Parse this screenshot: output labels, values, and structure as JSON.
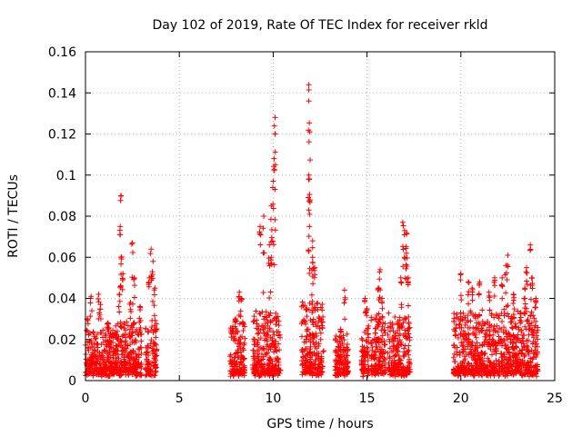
{
  "chart_data": {
    "type": "scatter",
    "title": "Day 102 of 2019, Rate Of TEC Index for receiver rkld",
    "xlabel": "GPS time / hours",
    "ylabel": "ROTI / TECUs",
    "xlim": [
      0,
      25
    ],
    "ylim": [
      0,
      0.16
    ],
    "x_ticks": [
      "0",
      "5",
      "10",
      "15",
      "20",
      "25"
    ],
    "y_ticks": [
      "0",
      "0.02",
      "0.04",
      "0.06",
      "0.08",
      "0.1",
      "0.12",
      "0.14",
      "0.16"
    ],
    "grid": true,
    "marker": "+",
    "color": "#ff0000",
    "clusters": [
      {
        "x_start": 0.0,
        "x_end": 1.6,
        "base_max": 0.022,
        "peaks": [
          [
            0.1,
            0.03
          ],
          [
            0.3,
            0.041
          ],
          [
            0.7,
            0.042
          ],
          [
            0.8,
            0.037
          ],
          [
            1.2,
            0.028
          ]
        ]
      },
      {
        "x_start": 1.6,
        "x_end": 2.1,
        "base_max": 0.024,
        "peaks": [
          [
            1.9,
            0.09
          ],
          [
            1.85,
            0.075
          ],
          [
            1.9,
            0.06
          ],
          [
            2.0,
            0.052
          ],
          [
            1.8,
            0.042
          ]
        ]
      },
      {
        "x_start": 2.1,
        "x_end": 3.0,
        "base_max": 0.025,
        "peaks": [
          [
            2.5,
            0.067
          ],
          [
            2.6,
            0.05
          ],
          [
            2.4,
            0.038
          ],
          [
            2.9,
            0.036
          ]
        ]
      },
      {
        "x_start": 3.2,
        "x_end": 3.8,
        "base_max": 0.026,
        "peaks": [
          [
            3.5,
            0.064
          ],
          [
            3.6,
            0.058
          ],
          [
            3.4,
            0.05
          ],
          [
            3.7,
            0.045
          ]
        ]
      },
      {
        "x_start": 7.7,
        "x_end": 8.5,
        "base_max": 0.025,
        "peaks": [
          [
            8.2,
            0.043
          ],
          [
            8.3,
            0.04
          ],
          [
            8.0,
            0.03
          ]
        ]
      },
      {
        "x_start": 8.9,
        "x_end": 10.4,
        "base_max": 0.03,
        "peaks": [
          [
            10.1,
            0.128
          ],
          [
            10.1,
            0.12
          ],
          [
            10.05,
            0.108
          ],
          [
            10.0,
            0.097
          ],
          [
            9.9,
            0.085
          ],
          [
            9.5,
            0.08
          ],
          [
            9.3,
            0.075
          ],
          [
            9.8,
            0.066
          ],
          [
            9.9,
            0.06
          ]
        ]
      },
      {
        "x_start": 11.5,
        "x_end": 12.7,
        "base_max": 0.035,
        "peaks": [
          [
            11.9,
            0.144
          ],
          [
            11.9,
            0.136
          ],
          [
            11.95,
            0.121
          ],
          [
            11.9,
            0.1
          ],
          [
            11.9,
            0.083
          ],
          [
            12.1,
            0.068
          ],
          [
            12.1,
            0.06
          ],
          [
            12.2,
            0.055
          ]
        ]
      },
      {
        "x_start": 13.3,
        "x_end": 14.0,
        "base_max": 0.018,
        "peaks": [
          [
            13.8,
            0.044
          ],
          [
            13.6,
            0.025
          ]
        ]
      },
      {
        "x_start": 14.7,
        "x_end": 15.1,
        "base_max": 0.025,
        "peaks": [
          [
            14.9,
            0.04
          ],
          [
            15.0,
            0.035
          ]
        ]
      },
      {
        "x_start": 15.2,
        "x_end": 16.0,
        "base_max": 0.028,
        "peaks": [
          [
            15.7,
            0.054
          ],
          [
            15.6,
            0.045
          ],
          [
            15.8,
            0.04
          ]
        ]
      },
      {
        "x_start": 16.1,
        "x_end": 17.3,
        "base_max": 0.028,
        "peaks": [
          [
            16.9,
            0.077
          ],
          [
            17.0,
            0.073
          ],
          [
            17.1,
            0.072
          ],
          [
            16.8,
            0.05
          ],
          [
            17.1,
            0.062
          ],
          [
            17.2,
            0.05
          ]
        ]
      },
      {
        "x_start": 19.6,
        "x_end": 20.7,
        "base_max": 0.03,
        "peaks": [
          [
            20.0,
            0.052
          ],
          [
            20.4,
            0.048
          ],
          [
            20.6,
            0.045
          ]
        ]
      },
      {
        "x_start": 20.7,
        "x_end": 22.0,
        "base_max": 0.03,
        "peaks": [
          [
            21.0,
            0.048
          ],
          [
            21.5,
            0.043
          ],
          [
            21.8,
            0.05
          ]
        ]
      },
      {
        "x_start": 22.0,
        "x_end": 23.0,
        "base_max": 0.03,
        "peaks": [
          [
            22.5,
            0.061
          ],
          [
            22.4,
            0.056
          ],
          [
            22.2,
            0.05
          ],
          [
            22.8,
            0.042
          ]
        ]
      },
      {
        "x_start": 23.0,
        "x_end": 24.1,
        "base_max": 0.032,
        "peaks": [
          [
            23.7,
            0.066
          ],
          [
            23.5,
            0.055
          ],
          [
            23.8,
            0.05
          ],
          [
            23.4,
            0.045
          ],
          [
            24.0,
            0.04
          ]
        ]
      }
    ]
  }
}
